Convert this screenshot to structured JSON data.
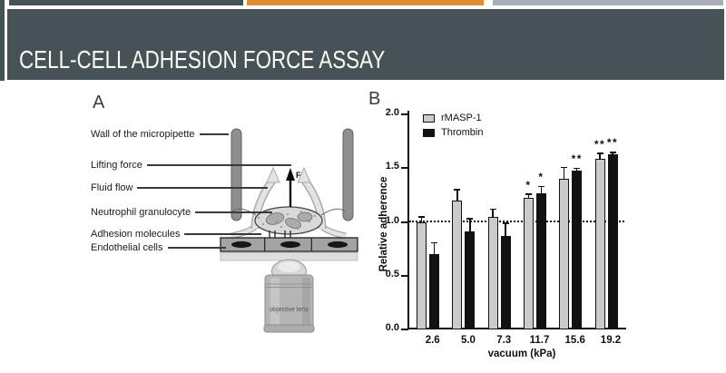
{
  "slide": {
    "title": "CELL-CELL ADHESION FORCE ASSAY",
    "accent_colors": {
      "slate": "#475257",
      "orange": "#E08A33",
      "gray": "#A9AFB9"
    }
  },
  "panel_a": {
    "label": "A",
    "annotations": [
      "Wall of the micropipette",
      "Lifting force",
      "Fluid flow",
      "Neutrophil granulocyte",
      "Adhesion molecules",
      "Endothelial cells"
    ],
    "force_symbol": "F",
    "objective_label": "objective lens"
  },
  "panel_b": {
    "label": "B"
  },
  "chart_data": {
    "type": "bar",
    "title": "",
    "categories": [
      "2.6",
      "5.0",
      "7.3",
      "11.7",
      "15.6",
      "19.2"
    ],
    "series": [
      {
        "name": "rMASP-1",
        "color": "#cbcbcb",
        "values": [
          1.0,
          1.2,
          1.05,
          1.22,
          1.4,
          1.59
        ],
        "errors": [
          0.05,
          0.1,
          0.07,
          0.04,
          0.11,
          0.05
        ],
        "sig": [
          "",
          "",
          "",
          "*",
          "",
          "**"
        ]
      },
      {
        "name": "Thrombin",
        "color": "#111111",
        "values": [
          0.7,
          0.91,
          0.87,
          1.27,
          1.48,
          1.63
        ],
        "errors": [
          0.11,
          0.12,
          0.12,
          0.06,
          0.02,
          0.02
        ],
        "sig": [
          "",
          "",
          "",
          "*",
          "**",
          "**"
        ]
      }
    ],
    "xlabel": "vacuum (kPa)",
    "ylabel": "Relative adherence",
    "ylim": [
      0.0,
      2.0
    ],
    "yticks": [
      "2.0",
      "1.5",
      "1.0",
      "0.5",
      "0.0"
    ],
    "baseline": 1.0,
    "legend_position": "top-left",
    "grid": false
  }
}
